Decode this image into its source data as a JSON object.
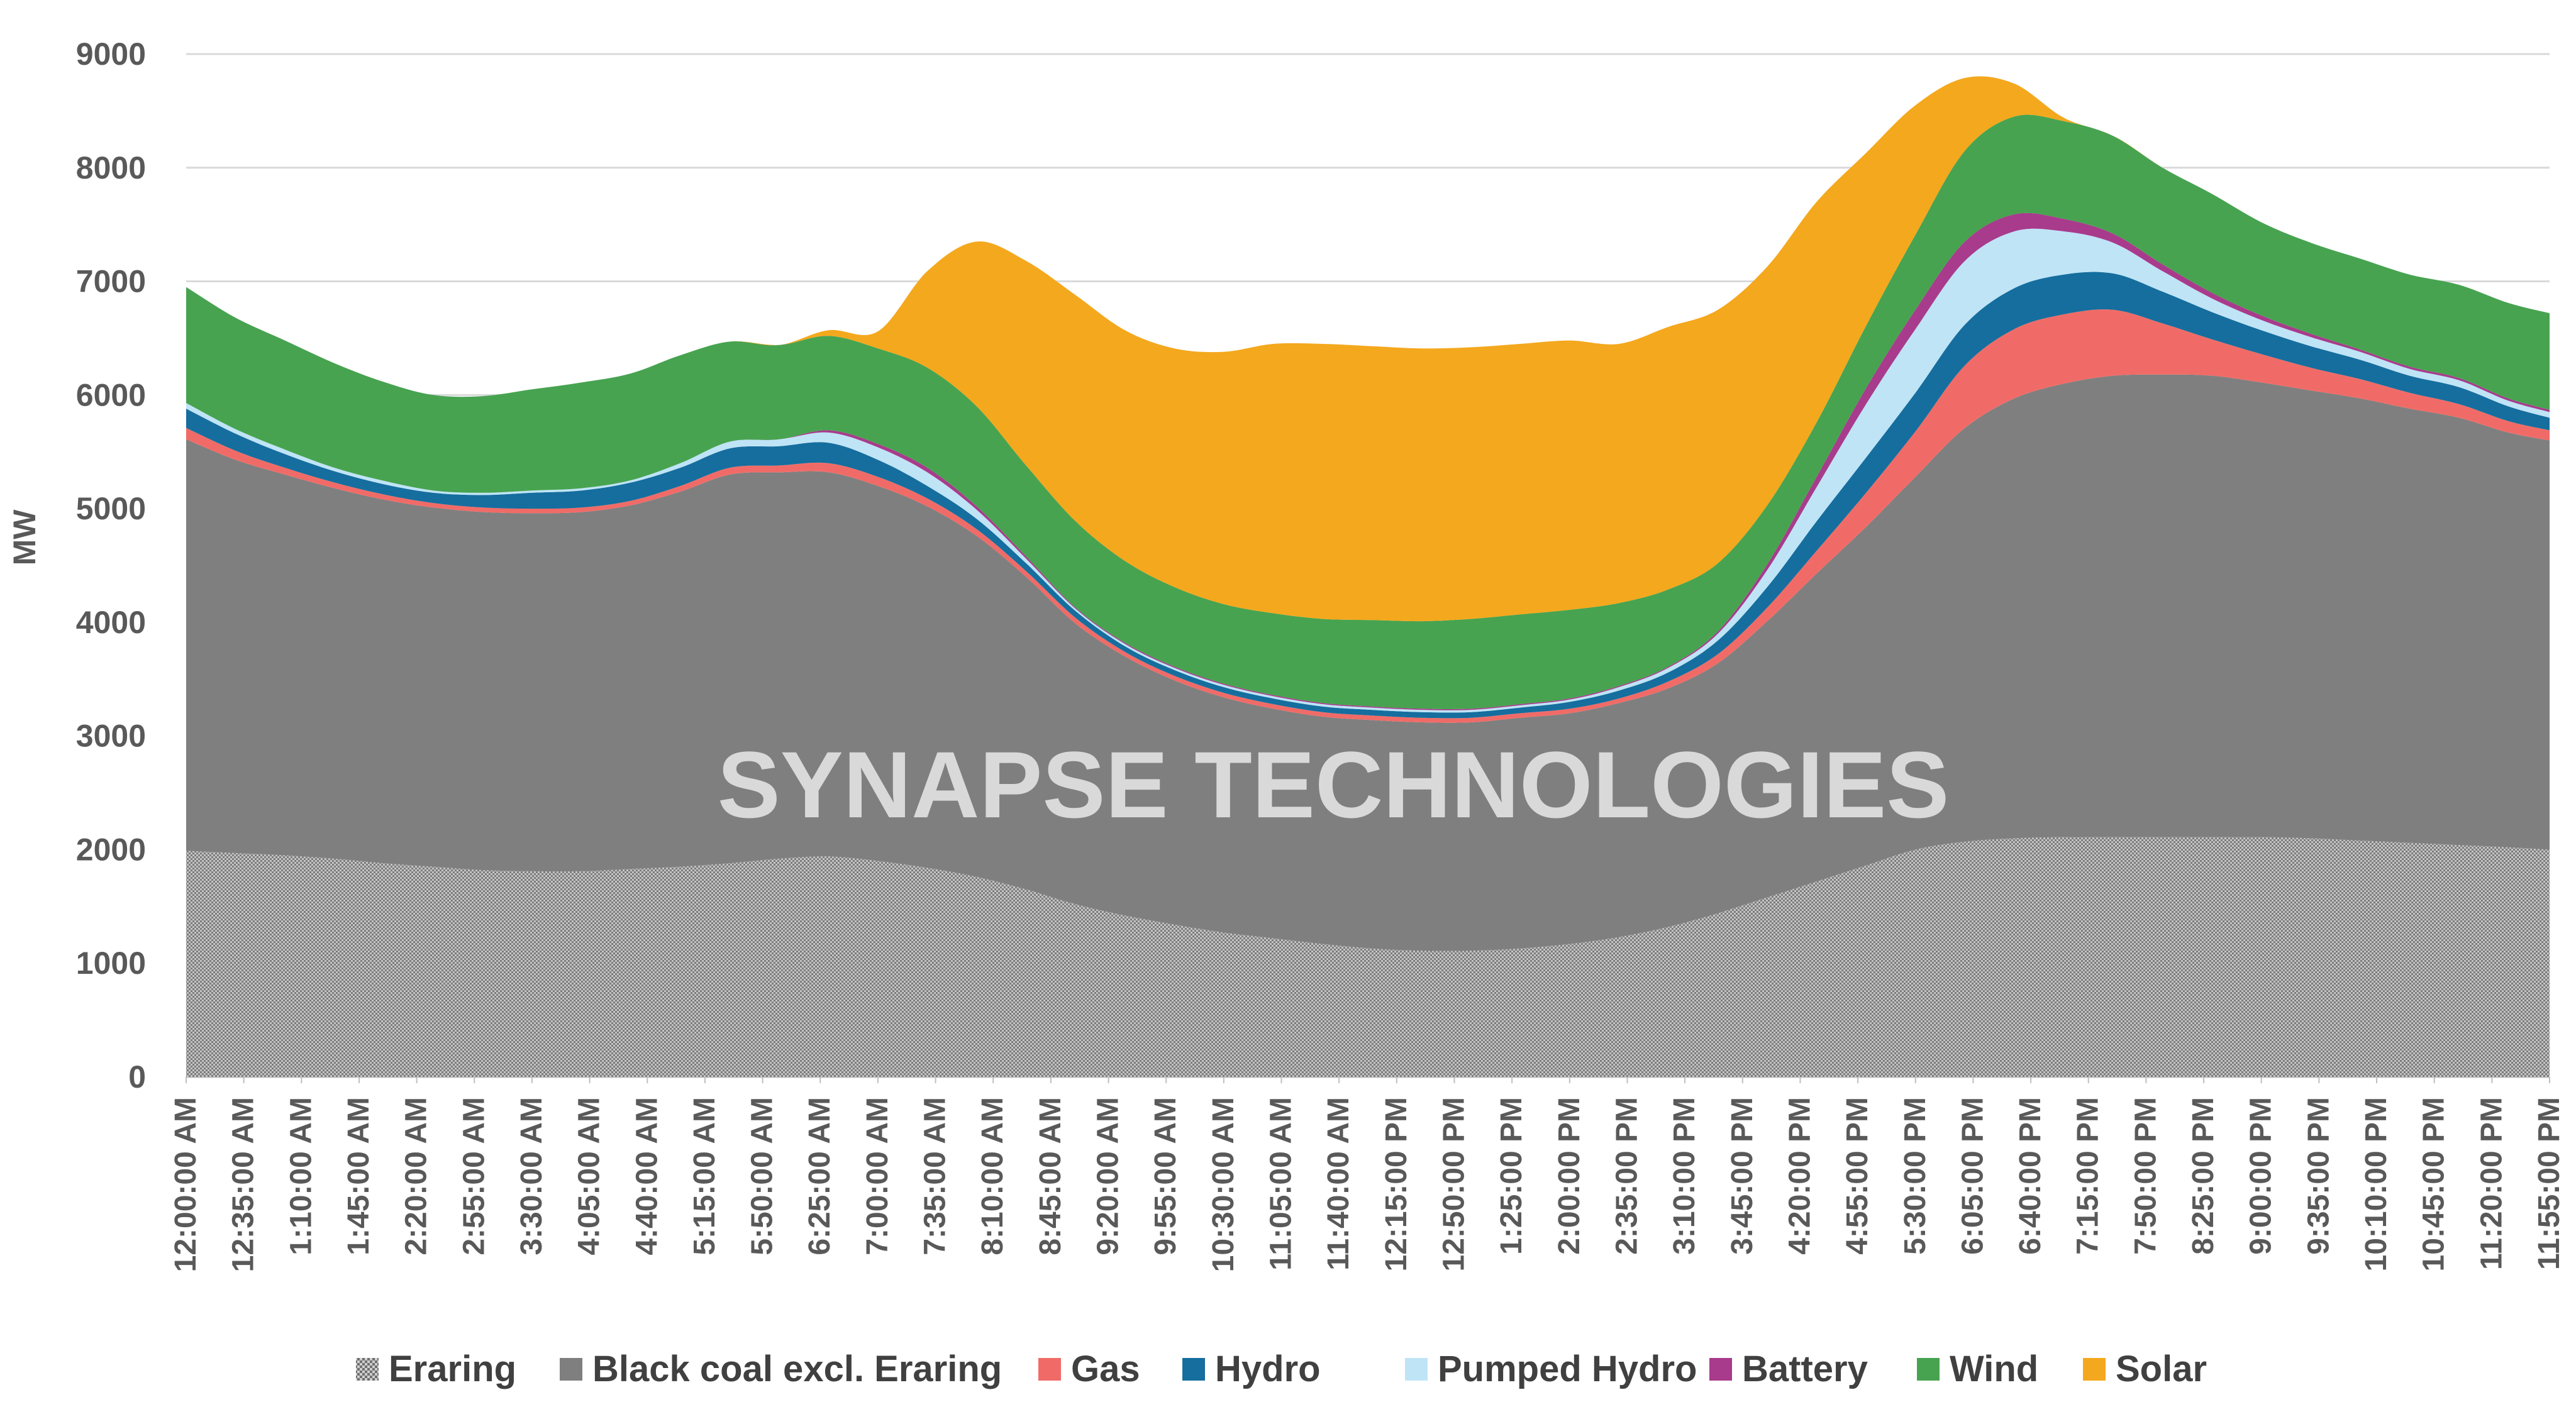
{
  "watermark": "SYNAPSE TECHNOLOGIES",
  "chart_data": {
    "type": "area",
    "stacked": true,
    "title": "",
    "xlabel": "",
    "ylabel": "MW",
    "ylim": [
      0,
      9000
    ],
    "y_ticks": [
      0,
      1000,
      2000,
      3000,
      4000,
      5000,
      6000,
      7000,
      8000,
      9000
    ],
    "grid": "horizontal",
    "legend_position": "bottom",
    "x_labels": [
      "12:00:00 AM",
      "12:35:00 AM",
      "1:10:00 AM",
      "1:45:00 AM",
      "2:20:00 AM",
      "2:55:00 AM",
      "3:30:00 AM",
      "4:05:00 AM",
      "4:40:00 AM",
      "5:15:00 AM",
      "5:50:00 AM",
      "6:25:00 AM",
      "7:00:00 AM",
      "7:35:00 AM",
      "8:10:00 AM",
      "8:45:00 AM",
      "9:20:00 AM",
      "9:55:00 AM",
      "10:30:00 AM",
      "11:05:00 AM",
      "11:40:00 AM",
      "12:15:00 PM",
      "12:50:00 PM",
      "1:25:00 PM",
      "2:00:00 PM",
      "2:35:00 PM",
      "3:10:00 PM",
      "3:45:00 PM",
      "4:20:00 PM",
      "4:55:00 PM",
      "5:30:00 PM",
      "6:05:00 PM",
      "6:40:00 PM",
      "7:15:00 PM",
      "7:50:00 PM",
      "8:25:00 PM",
      "9:00:00 PM",
      "9:35:00 PM",
      "10:10:00 PM",
      "10:45:00 PM",
      "11:20:00 PM",
      "11:55:00 PM"
    ],
    "x_hours": [
      0.0,
      0.5,
      1.0,
      1.5,
      2.0,
      2.5,
      3.0,
      3.5,
      4.0,
      4.5,
      5.0,
      5.5,
      6.0,
      6.5,
      7.0,
      7.5,
      8.0,
      8.5,
      9.0,
      9.5,
      10.0,
      10.5,
      11.0,
      11.5,
      12.0,
      12.5,
      13.0,
      13.5,
      14.0,
      14.5,
      15.0,
      15.5,
      16.0,
      16.5,
      17.0,
      17.5,
      18.0,
      18.5,
      19.0,
      19.5,
      20.0,
      20.5,
      21.0,
      21.5,
      22.0,
      22.5,
      23.0,
      23.5,
      23.917
    ],
    "series": [
      {
        "name": "Eraring",
        "color": "#9a9a9a",
        "pattern": "checker",
        "values": [
          1990,
          1970,
          1950,
          1920,
          1880,
          1850,
          1820,
          1810,
          1810,
          1830,
          1850,
          1880,
          1920,
          1940,
          1900,
          1840,
          1760,
          1650,
          1520,
          1420,
          1340,
          1270,
          1220,
          1170,
          1130,
          1110,
          1110,
          1130,
          1170,
          1230,
          1320,
          1440,
          1580,
          1720,
          1860,
          2000,
          2070,
          2100,
          2110,
          2110,
          2110,
          2110,
          2110,
          2100,
          2080,
          2060,
          2040,
          2020,
          2000
        ]
      },
      {
        "name": "Black coal excl. Eraring",
        "color": "#7f7f7f",
        "values": [
          3620,
          3460,
          3350,
          3260,
          3200,
          3160,
          3150,
          3150,
          3160,
          3200,
          3300,
          3420,
          3400,
          3380,
          3300,
          3180,
          3000,
          2750,
          2470,
          2280,
          2150,
          2070,
          2020,
          2000,
          2010,
          2010,
          2010,
          2030,
          2030,
          2060,
          2100,
          2200,
          2430,
          2710,
          2980,
          3280,
          3640,
          3870,
          3990,
          4060,
          4070,
          4060,
          4000,
          3940,
          3890,
          3820,
          3760,
          3650,
          3600
        ]
      },
      {
        "name": "Gas",
        "color": "#f06b67",
        "values": [
          100,
          80,
          60,
          50,
          45,
          40,
          40,
          40,
          40,
          40,
          50,
          60,
          60,
          80,
          80,
          70,
          60,
          50,
          50,
          40,
          40,
          40,
          40,
          40,
          40,
          40,
          40,
          40,
          40,
          40,
          60,
          80,
          120,
          200,
          300,
          400,
          550,
          610,
          610,
          580,
          450,
          320,
          250,
          200,
          170,
          140,
          120,
          100,
          90
        ]
      },
      {
        "name": "Hydro",
        "color": "#156e9e",
        "values": [
          170,
          150,
          120,
          100,
          90,
          90,
          110,
          140,
          150,
          160,
          160,
          170,
          170,
          180,
          150,
          110,
          90,
          70,
          60,
          50,
          50,
          50,
          50,
          50,
          50,
          50,
          50,
          50,
          60,
          70,
          80,
          120,
          180,
          260,
          310,
          340,
          360,
          360,
          350,
          320,
          280,
          240,
          210,
          190,
          170,
          150,
          150,
          130,
          110
        ]
      },
      {
        "name": "Pumped Hydro",
        "color": "#bfe4f6",
        "values": [
          50,
          40,
          40,
          30,
          30,
          20,
          20,
          20,
          20,
          20,
          40,
          60,
          60,
          90,
          110,
          120,
          80,
          40,
          20,
          20,
          20,
          20,
          20,
          20,
          20,
          20,
          20,
          20,
          20,
          30,
          40,
          60,
          150,
          300,
          470,
          560,
          560,
          500,
          380,
          270,
          180,
          120,
          90,
          80,
          70,
          60,
          60,
          50,
          50
        ]
      },
      {
        "name": "Battery",
        "color": "#a83b8c",
        "values": [
          0,
          0,
          0,
          0,
          0,
          0,
          0,
          0,
          0,
          0,
          0,
          0,
          0,
          20,
          30,
          40,
          30,
          20,
          10,
          10,
          10,
          10,
          10,
          10,
          10,
          10,
          10,
          10,
          10,
          10,
          10,
          20,
          50,
          90,
          140,
          170,
          170,
          150,
          110,
          80,
          60,
          50,
          40,
          30,
          20,
          20,
          20,
          20,
          20
        ]
      },
      {
        "name": "Wind",
        "color": "#47a350",
        "values": [
          1020,
          980,
          960,
          920,
          870,
          840,
          850,
          890,
          930,
          940,
          950,
          880,
          830,
          830,
          840,
          880,
          880,
          800,
          760,
          720,
          700,
          700,
          720,
          740,
          760,
          770,
          790,
          790,
          780,
          730,
          680,
          600,
          520,
          480,
          550,
          660,
          800,
          860,
          860,
          860,
          850,
          870,
          820,
          800,
          800,
          810,
          820,
          840,
          850
        ]
      },
      {
        "name": "Solar",
        "color": "#f4a81d",
        "values": [
          0,
          0,
          0,
          0,
          0,
          0,
          0,
          0,
          0,
          0,
          0,
          0,
          0,
          50,
          150,
          850,
          1450,
          1800,
          1990,
          2030,
          2100,
          2220,
          2370,
          2420,
          2410,
          2400,
          2390,
          2380,
          2370,
          2280,
          2310,
          2230,
          2100,
          1940,
          1520,
          1140,
          640,
          290,
          30,
          0,
          0,
          0,
          0,
          0,
          0,
          0,
          0,
          0,
          0
        ]
      }
    ]
  }
}
